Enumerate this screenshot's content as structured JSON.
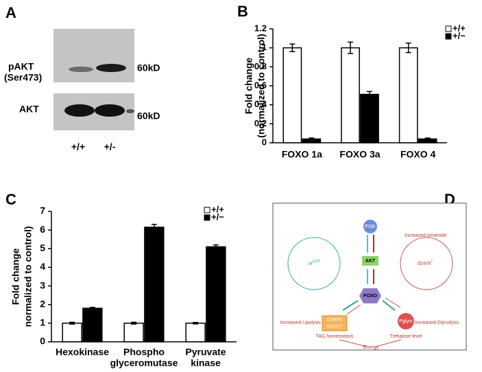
{
  "panel_labels": [
    "A",
    "B",
    "C",
    "D"
  ],
  "blot": {
    "rows": [
      {
        "label": [
          "pAKT",
          "(Ser473)"
        ],
        "size": "60kD"
      },
      {
        "label": [
          "AKT"
        ],
        "size": "60kD"
      }
    ],
    "lanes": [
      "+/+",
      "+/-"
    ]
  },
  "chart_data": [
    {
      "type": "bar",
      "y_label": [
        "Fold change",
        "(normalized to control)"
      ],
      "categories": [
        [
          "FOXO 1a"
        ],
        [
          "FOXO 3a"
        ],
        [
          "FOXO 4"
        ]
      ],
      "series": [
        {
          "name": "+/+",
          "color": "#ffffff",
          "values": [
            1,
            1,
            1
          ],
          "errors": [
            0.04,
            0.06,
            0.05
          ]
        },
        {
          "name": "+/−",
          "color": "#000000",
          "values": [
            0.04,
            0.51,
            0.04
          ],
          "errors": [
            0.01,
            0.03,
            0.01
          ]
        }
      ],
      "ylim": [
        0,
        1.2
      ],
      "yticks": [
        0,
        0.2,
        0.4,
        0.6,
        0.8,
        1,
        1.2
      ]
    },
    {
      "type": "bar",
      "y_label": [
        "Fold change",
        "normalized to control)"
      ],
      "categories": [
        [
          "Hexokinase"
        ],
        [
          "Phospho",
          "glyceromutase"
        ],
        [
          "Pyruvate",
          "kinase"
        ]
      ],
      "series": [
        {
          "name": "+/+",
          "color": "#ffffff",
          "values": [
            1,
            1,
            1
          ],
          "errors": [
            0.05,
            0.05,
            0.04
          ]
        },
        {
          "name": "+/−",
          "color": "#000000",
          "values": [
            1.8,
            6.15,
            5.1
          ],
          "errors": [
            0.05,
            0.15,
            0.1
          ]
        }
      ],
      "ylim": [
        0,
        7
      ],
      "yticks": [
        0,
        1,
        2,
        3,
        4,
        5,
        6,
        7
      ]
    }
  ],
  "diagram": {
    "pi3k": "PI3K",
    "akt": "AKT",
    "foxo": "FOXO",
    "ceramide": "Increased ceramide",
    "wt": {
      "base": "w",
      "sup": "1118"
    },
    "mutant": {
      "base": "dcerk",
      "sup": "1"
    },
    "cg": [
      "CG8093",
      "CG6277"
    ],
    "pglym": "Pglym",
    "lipolysis": "Increased Lipolysis",
    "glycolysis": "Increased Glycolysis",
    "tag": "TAG homeostasis",
    "trehalose": "Trehalose level",
    "energy": "Energy"
  }
}
